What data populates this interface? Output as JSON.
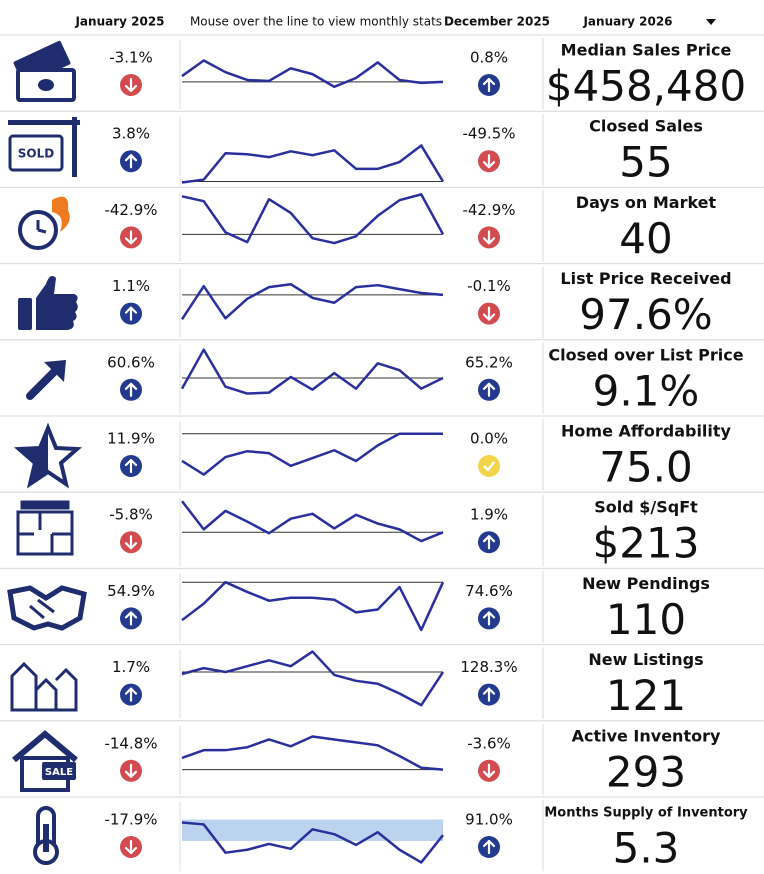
{
  "header": {
    "left_period": "January 2025",
    "hint": "Mouse over the line to view monthly stats",
    "mid_period": "December 2025",
    "selector": "January 2026"
  },
  "spark_lim": [
    0,
    70
  ],
  "rows": [
    {
      "label": "Median Sales Price",
      "value": "$458,480",
      "yoy": "-3.1%",
      "yoy_dir": "down",
      "mom": "0.8%",
      "mom_dir": "up",
      "trend": [
        34,
        50,
        38,
        30,
        29,
        42,
        36,
        23,
        32,
        48,
        30,
        27,
        28
      ],
      "baseline": 28
    },
    {
      "label": "Closed Sales",
      "value": "55",
      "yoy": "3.8%",
      "yoy_dir": "up",
      "mom": "-49.5%",
      "mom_dir": "down",
      "trend": [
        3,
        6,
        33,
        32,
        29,
        35,
        31,
        36,
        17,
        17,
        24,
        41,
        4
      ],
      "baseline": 4,
      "sign_text": "SOLD"
    },
    {
      "label": "Days on Market",
      "value": "40",
      "yoy": "-42.9%",
      "yoy_dir": "down",
      "mom": "-42.9%",
      "mom_dir": "down",
      "trend": [
        67,
        62,
        30,
        20,
        64,
        50,
        24,
        19,
        26,
        47,
        63,
        69,
        28
      ],
      "baseline": 28
    },
    {
      "label": "List Price Received",
      "value": "97.6%",
      "yoy": "1.1%",
      "yoy_dir": "up",
      "mom": "-0.1%",
      "mom_dir": "down",
      "trend": [
        19,
        53,
        20,
        40,
        52,
        55,
        41,
        36,
        52,
        54,
        50,
        46,
        44
      ],
      "baseline": 44
    },
    {
      "label": "Closed over List Price",
      "value": "9.1%",
      "yoy": "60.6%",
      "yoy_dir": "up",
      "mom": "65.2%",
      "mom_dir": "up",
      "trend": [
        26,
        66,
        28,
        21,
        22,
        38,
        25,
        42,
        26,
        52,
        45,
        26,
        37
      ],
      "baseline": 37
    },
    {
      "label": "Home Affordability",
      "value": "75.0",
      "yoy": "11.9%",
      "yoy_dir": "up",
      "mom": "0.0%",
      "mom_dir": "flat",
      "trend": [
        30,
        16,
        34,
        40,
        38,
        25,
        33,
        41,
        30,
        46,
        58,
        58,
        58
      ],
      "baseline": 58
    },
    {
      "label": "Sold $/SqFt",
      "value": "$213",
      "yoy": "-5.8%",
      "yoy_dir": "down",
      "mom": "1.9%",
      "mom_dir": "up",
      "trend": [
        67,
        38,
        57,
        46,
        34,
        49,
        54,
        39,
        53,
        44,
        38,
        26,
        35
      ],
      "baseline": 35
    },
    {
      "label": "New Pendings",
      "value": "110",
      "yoy": "54.9%",
      "yoy_dir": "up",
      "mom": "74.6%",
      "mom_dir": "up",
      "trend": [
        23,
        40,
        62,
        52,
        43,
        46,
        46,
        44,
        31,
        34,
        57,
        13,
        62
      ],
      "baseline": 62
    },
    {
      "label": "New Listings",
      "value": "121",
      "yoy": "1.7%",
      "yoy_dir": "up",
      "mom": "128.3%",
      "mom_dir": "up",
      "trend": [
        46,
        52,
        48,
        54,
        60,
        54,
        69,
        45,
        39,
        36,
        26,
        14,
        48
      ],
      "baseline": 48
    },
    {
      "label": "Active Inventory",
      "value": "293",
      "yoy": "-14.8%",
      "yoy_dir": "down",
      "mom": "-3.6%",
      "mom_dir": "down",
      "trend": [
        38,
        46,
        46,
        49,
        57,
        50,
        60,
        57,
        54,
        51,
        40,
        28,
        26
      ],
      "baseline": 26,
      "sign_text": "SALE"
    },
    {
      "label": "Months Supply of Inventory",
      "value": "5.3",
      "yoy": "-17.9%",
      "yoy_dir": "down",
      "mom": "91.0%",
      "mom_dir": "up",
      "trend": [
        50,
        48,
        19,
        22,
        28,
        23,
        43,
        38,
        27,
        40,
        22,
        9,
        37
      ],
      "band": [
        31,
        53
      ]
    }
  ]
}
